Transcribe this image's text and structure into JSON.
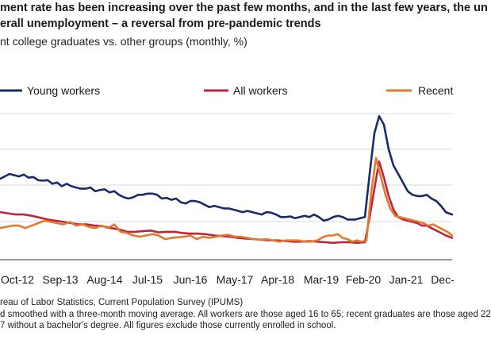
{
  "header": {
    "title_line1": "ment rate has been increasing over the past few months, and in the last few years, the un",
    "title_line2": "erall unemployment – a reversal from pre-pandemic trends",
    "subtitle": "nt college graduates vs. other groups (monthly, %)"
  },
  "footer": {
    "source_line1": "reau of Labor Statistics, Current Population Survey (IPUMS)",
    "source_line2": "d smoothed with a three-month moving average. All workers are those aged 16 to 65; recent graduates are those aged 22",
    "source_line3": "7 without a bachelor's degree. All figures exclude those currently enrolled in school."
  },
  "colors": {
    "young": "#1b2a6b",
    "all": "#c0233e",
    "recent": "#e07a2e",
    "grid": "#d9d9d9",
    "axis": "#333333"
  },
  "chart_data": {
    "type": "line",
    "title": "",
    "xlabel": "",
    "ylabel": "",
    "x_tick_labels": [
      "Oct-12",
      "Sep-13",
      "Aug-14",
      "Jul-15",
      "Jun-16",
      "May-17",
      "Apr-18",
      "Mar-19",
      "Feb-20",
      "Jan-21",
      "Dec-"
    ],
    "gridlines": 4,
    "grid": true,
    "legend_placement": "top",
    "series": [
      {
        "name": "Young workers",
        "color": "#1b2a6b",
        "values": [
          [
            0,
            10.6
          ],
          [
            6,
            10.8
          ],
          [
            12,
            11.0
          ],
          [
            18,
            10.9
          ],
          [
            24,
            10.8
          ],
          [
            30,
            10.95
          ],
          [
            36,
            10.7
          ],
          [
            42,
            10.75
          ],
          [
            48,
            10.5
          ],
          [
            54,
            10.45
          ],
          [
            60,
            10.5
          ],
          [
            66,
            10.2
          ],
          [
            72,
            10.3
          ],
          [
            78,
            10.0
          ],
          [
            84,
            10.2
          ],
          [
            90,
            10.0
          ],
          [
            96,
            9.9
          ],
          [
            102,
            9.8
          ],
          [
            108,
            9.8
          ],
          [
            114,
            9.9
          ],
          [
            120,
            9.6
          ],
          [
            126,
            9.7
          ],
          [
            132,
            9.75
          ],
          [
            138,
            9.5
          ],
          [
            144,
            9.6
          ],
          [
            150,
            9.3
          ],
          [
            156,
            9.1
          ],
          [
            162,
            9.0
          ],
          [
            168,
            9.1
          ],
          [
            174,
            9.3
          ],
          [
            180,
            9.3
          ],
          [
            186,
            9.4
          ],
          [
            192,
            9.4
          ],
          [
            198,
            9.3
          ],
          [
            204,
            9.0
          ],
          [
            210,
            9.05
          ],
          [
            216,
            8.9
          ],
          [
            222,
            9.0
          ],
          [
            228,
            8.7
          ],
          [
            234,
            8.6
          ],
          [
            240,
            8.8
          ],
          [
            246,
            8.8
          ],
          [
            252,
            8.7
          ],
          [
            258,
            8.5
          ],
          [
            264,
            8.3
          ],
          [
            270,
            8.4
          ],
          [
            276,
            8.3
          ],
          [
            282,
            8.2
          ],
          [
            288,
            8.2
          ],
          [
            294,
            8.1
          ],
          [
            300,
            8.0
          ],
          [
            306,
            7.9
          ],
          [
            312,
            8.0
          ],
          [
            318,
            7.9
          ],
          [
            324,
            7.8
          ],
          [
            330,
            7.7
          ],
          [
            336,
            7.9
          ],
          [
            342,
            7.85
          ],
          [
            348,
            7.7
          ],
          [
            354,
            7.5
          ],
          [
            360,
            7.5
          ],
          [
            366,
            7.55
          ],
          [
            372,
            7.4
          ],
          [
            378,
            7.5
          ],
          [
            384,
            7.6
          ],
          [
            390,
            7.5
          ],
          [
            396,
            7.7
          ],
          [
            402,
            7.5
          ],
          [
            408,
            7.2
          ],
          [
            414,
            7.3
          ],
          [
            420,
            7.5
          ],
          [
            426,
            7.6
          ],
          [
            432,
            7.5
          ],
          [
            438,
            7.3
          ],
          [
            442,
            7.3
          ],
          [
            448,
            7.3
          ],
          [
            454,
            7.4
          ],
          [
            460,
            7.5
          ],
          [
            466,
            11.0
          ],
          [
            472,
            14.3
          ],
          [
            478,
            15.7
          ],
          [
            484,
            15.0
          ],
          [
            490,
            13.0
          ],
          [
            496,
            11.7
          ],
          [
            502,
            11.0
          ],
          [
            508,
            10.3
          ],
          [
            514,
            9.6
          ],
          [
            520,
            9.3
          ],
          [
            526,
            9.2
          ],
          [
            532,
            9.2
          ],
          [
            538,
            9.3
          ],
          [
            544,
            9.0
          ],
          [
            550,
            8.8
          ],
          [
            556,
            8.4
          ],
          [
            562,
            7.9
          ],
          [
            570,
            7.7
          ]
        ]
      },
      {
        "name": "All workers",
        "color": "#c0233e",
        "values": [
          [
            0,
            7.9
          ],
          [
            10,
            7.8
          ],
          [
            20,
            7.7
          ],
          [
            30,
            7.7
          ],
          [
            40,
            7.6
          ],
          [
            50,
            7.45
          ],
          [
            60,
            7.3
          ],
          [
            70,
            7.2
          ],
          [
            80,
            7.1
          ],
          [
            90,
            7.0
          ],
          [
            100,
            6.9
          ],
          [
            110,
            6.9
          ],
          [
            120,
            6.8
          ],
          [
            130,
            6.75
          ],
          [
            140,
            6.6
          ],
          [
            150,
            6.5
          ],
          [
            160,
            6.3
          ],
          [
            170,
            6.3
          ],
          [
            180,
            6.35
          ],
          [
            190,
            6.4
          ],
          [
            200,
            6.25
          ],
          [
            210,
            6.3
          ],
          [
            220,
            6.3
          ],
          [
            230,
            6.2
          ],
          [
            240,
            6.15
          ],
          [
            250,
            6.15
          ],
          [
            260,
            6.1
          ],
          [
            270,
            6.0
          ],
          [
            280,
            5.95
          ],
          [
            290,
            5.9
          ],
          [
            300,
            5.8
          ],
          [
            310,
            5.75
          ],
          [
            320,
            5.7
          ],
          [
            330,
            5.65
          ],
          [
            340,
            5.6
          ],
          [
            350,
            5.6
          ],
          [
            360,
            5.55
          ],
          [
            370,
            5.5
          ],
          [
            380,
            5.5
          ],
          [
            390,
            5.55
          ],
          [
            400,
            5.5
          ],
          [
            410,
            5.45
          ],
          [
            420,
            5.4
          ],
          [
            430,
            5.45
          ],
          [
            440,
            5.45
          ],
          [
            450,
            5.4
          ],
          [
            460,
            5.45
          ],
          [
            466,
            7.5
          ],
          [
            472,
            9.8
          ],
          [
            478,
            12.0
          ],
          [
            484,
            10.7
          ],
          [
            490,
            9.2
          ],
          [
            496,
            8.1
          ],
          [
            502,
            7.5
          ],
          [
            508,
            7.3
          ],
          [
            514,
            7.2
          ],
          [
            520,
            7.1
          ],
          [
            526,
            7.0
          ],
          [
            532,
            6.8
          ],
          [
            538,
            6.8
          ],
          [
            544,
            6.6
          ],
          [
            550,
            6.4
          ],
          [
            556,
            6.2
          ],
          [
            562,
            6.0
          ],
          [
            570,
            5.8
          ]
        ]
      },
      {
        "name": "Recent",
        "color": "#e07a2e",
        "values": [
          [
            0,
            6.6
          ],
          [
            8,
            6.7
          ],
          [
            16,
            6.8
          ],
          [
            24,
            6.8
          ],
          [
            32,
            6.6
          ],
          [
            40,
            6.8
          ],
          [
            48,
            7.0
          ],
          [
            56,
            7.2
          ],
          [
            64,
            7.1
          ],
          [
            72,
            7.0
          ],
          [
            80,
            6.9
          ],
          [
            88,
            7.1
          ],
          [
            96,
            6.8
          ],
          [
            104,
            6.9
          ],
          [
            112,
            6.7
          ],
          [
            120,
            6.6
          ],
          [
            128,
            6.8
          ],
          [
            136,
            6.6
          ],
          [
            144,
            6.9
          ],
          [
            152,
            6.3
          ],
          [
            160,
            6.2
          ],
          [
            168,
            6.0
          ],
          [
            176,
            5.9
          ],
          [
            184,
            6.0
          ],
          [
            192,
            6.1
          ],
          [
            200,
            6.0
          ],
          [
            208,
            5.7
          ],
          [
            216,
            5.8
          ],
          [
            224,
            5.85
          ],
          [
            232,
            5.9
          ],
          [
            240,
            6.0
          ],
          [
            248,
            5.7
          ],
          [
            256,
            5.9
          ],
          [
            264,
            5.8
          ],
          [
            272,
            5.9
          ],
          [
            280,
            6.0
          ],
          [
            288,
            6.05
          ],
          [
            296,
            5.9
          ],
          [
            304,
            5.9
          ],
          [
            312,
            5.8
          ],
          [
            320,
            5.7
          ],
          [
            328,
            5.65
          ],
          [
            336,
            5.7
          ],
          [
            344,
            5.6
          ],
          [
            352,
            5.5
          ],
          [
            360,
            5.6
          ],
          [
            368,
            5.6
          ],
          [
            376,
            5.6
          ],
          [
            384,
            5.5
          ],
          [
            392,
            5.5
          ],
          [
            400,
            5.6
          ],
          [
            408,
            5.9
          ],
          [
            414,
            6.0
          ],
          [
            420,
            6.0
          ],
          [
            426,
            6.1
          ],
          [
            432,
            5.8
          ],
          [
            438,
            5.7
          ],
          [
            444,
            5.5
          ],
          [
            450,
            5.6
          ],
          [
            456,
            5.5
          ],
          [
            462,
            5.6
          ],
          [
            468,
            9.5
          ],
          [
            474,
            12.3
          ],
          [
            480,
            10.8
          ],
          [
            486,
            9.3
          ],
          [
            492,
            8.2
          ],
          [
            498,
            7.6
          ],
          [
            504,
            7.5
          ],
          [
            510,
            7.4
          ],
          [
            516,
            7.3
          ],
          [
            522,
            7.2
          ],
          [
            528,
            7.1
          ],
          [
            534,
            7.0
          ],
          [
            540,
            6.8
          ],
          [
            546,
            6.9
          ],
          [
            552,
            6.7
          ],
          [
            558,
            6.5
          ],
          [
            564,
            6.3
          ],
          [
            570,
            6.0
          ]
        ]
      }
    ]
  }
}
